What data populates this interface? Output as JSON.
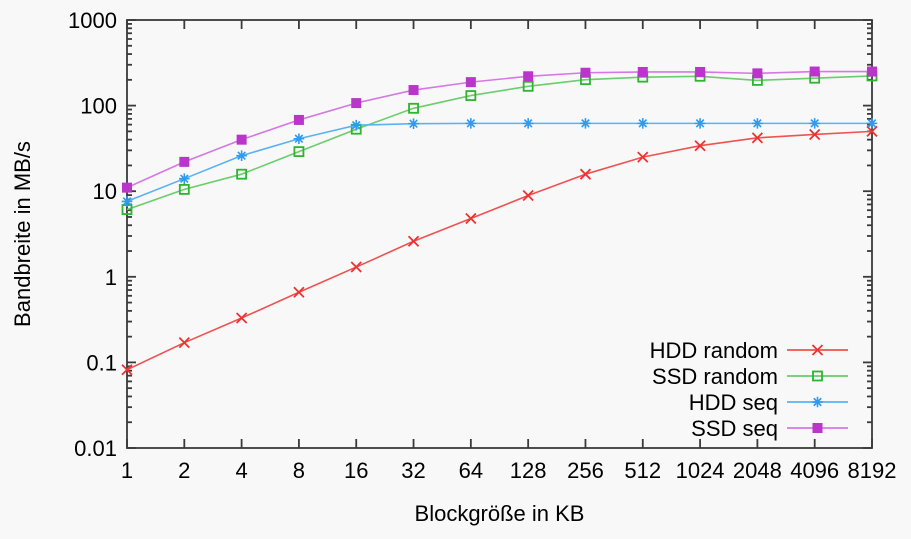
{
  "page": {
    "background": "#f8f8f8",
    "text_color": "#000000",
    "axis_color": "#3a3a3a"
  },
  "chart_data": {
    "type": "line",
    "title": "",
    "xlabel": "Blockgröße in KB",
    "ylabel": "Bandbreite in MB/s",
    "x_scale": "log2",
    "y_scale": "log10",
    "xlim": [
      1,
      8192
    ],
    "ylim": [
      0.01,
      1000
    ],
    "grid": false,
    "legend_position": "inside-bottom-right",
    "x": [
      1,
      2,
      4,
      8,
      16,
      32,
      64,
      128,
      256,
      512,
      1024,
      2048,
      4096,
      8192
    ],
    "x_tick_labels": [
      "1",
      "2",
      "4",
      "8",
      "16",
      "32",
      "64",
      "128",
      "256",
      "512",
      "1024",
      "2048",
      "4096",
      "8192"
    ],
    "y_ticks": [
      0.01,
      0.1,
      1,
      10,
      100,
      1000
    ],
    "y_tick_labels": [
      "0.01",
      "0.1",
      "1",
      "10",
      "100",
      "1000"
    ],
    "y_minor_multiples": [
      2,
      3,
      4,
      5,
      6,
      7,
      8,
      9
    ],
    "series": [
      {
        "name": "HDD random",
        "marker": "cross",
        "line_color": "#f15151",
        "marker_color": "#ee3232",
        "values": [
          0.082,
          0.17,
          0.33,
          0.66,
          1.3,
          2.6,
          4.8,
          8.9,
          15.8,
          25,
          34,
          42,
          46,
          50
        ]
      },
      {
        "name": "SSD random",
        "marker": "open-square",
        "line_color": "#6bcd6b",
        "marker_color": "#2eb42e",
        "values": [
          6.1,
          10.5,
          15.8,
          29,
          53,
          93,
          131,
          168,
          201,
          215,
          220,
          197,
          209,
          222
        ]
      },
      {
        "name": "HDD seq",
        "marker": "asterisk",
        "line_color": "#5ab2f3",
        "marker_color": "#2e9af0",
        "values": [
          7.6,
          14,
          26,
          41,
          59,
          61.5,
          62,
          62,
          62,
          62,
          62,
          62,
          62,
          62
        ]
      },
      {
        "name": "SSD seq",
        "marker": "filled-square",
        "line_color": "#d478e3",
        "marker_color": "#ba36cb",
        "values": [
          11,
          22,
          40,
          68,
          107,
          152,
          188,
          220,
          242,
          247,
          247,
          238,
          250,
          250
        ]
      }
    ]
  }
}
